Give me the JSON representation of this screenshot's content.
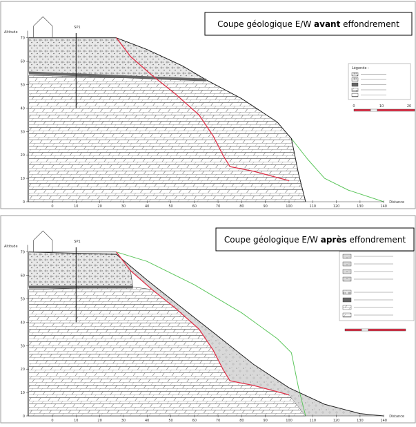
{
  "panels": [
    {
      "title": {
        "prefix": "Coupe géologique E/W",
        "emphasis": "avant",
        "suffix": "effondrement"
      },
      "y_axis": {
        "label": "Altitude",
        "ticks": [
          0,
          10,
          20,
          30,
          40,
          50,
          60,
          70
        ]
      },
      "x_axis": {
        "label": "Distance",
        "ticks": [
          0,
          10,
          20,
          30,
          40,
          50,
          60,
          70,
          80,
          90,
          100,
          110,
          120,
          130,
          140
        ]
      },
      "borehole": "SP1",
      "legend_title": "Légende :",
      "scale_ticks": [
        0,
        10,
        20
      ]
    },
    {
      "title": {
        "prefix": "Coupe géologique E/W",
        "emphasis": "après",
        "suffix": "effondrement"
      },
      "y_axis": {
        "label": "Altitude",
        "ticks": [
          0,
          10,
          20,
          30,
          40,
          50,
          60,
          70
        ]
      },
      "x_axis": {
        "label": "Distance",
        "ticks": [
          0,
          10,
          20,
          30,
          40,
          50,
          60,
          70,
          80,
          90,
          100,
          110,
          120,
          130,
          140
        ]
      },
      "borehole": "SP1"
    }
  ]
}
